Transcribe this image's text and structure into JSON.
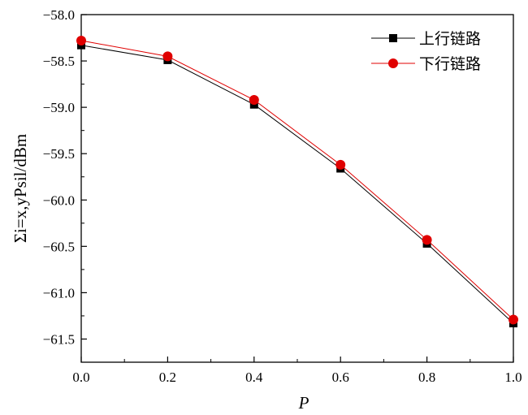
{
  "chart_data": {
    "type": "line",
    "title": "",
    "xlabel": "P",
    "ylabel": "Σi=x,yPsil/dBm",
    "xlim": [
      0.0,
      1.0
    ],
    "ylim": [
      -61.75,
      -58.0
    ],
    "x_ticks": [
      0.0,
      0.2,
      0.4,
      0.6,
      0.8,
      1.0
    ],
    "x_tick_labels": [
      "0.0",
      "0.2",
      "0.4",
      "0.6",
      "0.8",
      "1.0"
    ],
    "y_ticks": [
      -58.0,
      -58.5,
      -59.0,
      -59.5,
      -60.0,
      -60.5,
      -61.0,
      -61.5
    ],
    "y_tick_labels": [
      "−58.0",
      "−58.5",
      "−59.0",
      "−59.5",
      "−60.0",
      "−60.5",
      "−61.0",
      "−61.5"
    ],
    "grid": false,
    "legend_position": "top-right",
    "x": [
      0.0,
      0.2,
      0.4,
      0.6,
      0.8,
      1.0
    ],
    "series": [
      {
        "name": "上行链路",
        "values": [
          -58.33,
          -58.49,
          -58.97,
          -59.66,
          -60.47,
          -61.33
        ],
        "color": "#000000",
        "marker": "square"
      },
      {
        "name": "下行链路",
        "values": [
          -58.28,
          -58.45,
          -58.92,
          -59.62,
          -60.43,
          -61.29
        ],
        "color": "#e00000",
        "marker": "circle"
      }
    ]
  }
}
